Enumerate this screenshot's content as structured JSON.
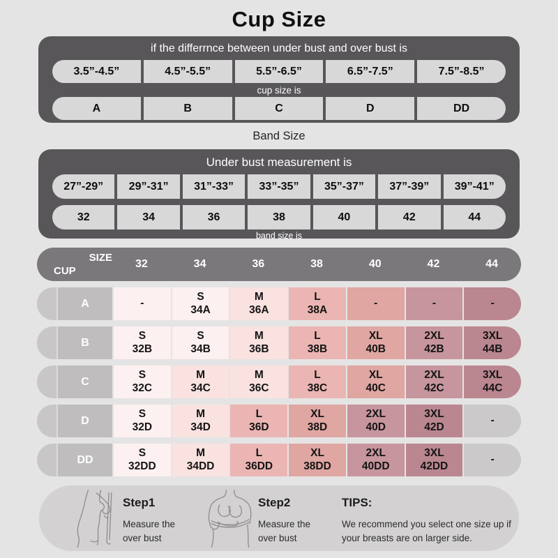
{
  "title": "Cup Size",
  "cup_table": {
    "header": "if the differrnce between under bust and over bust is",
    "ranges": [
      "3.5”-4.5”",
      "4.5”-5.5”",
      "5.5”-6.5”",
      "6.5”-7.5”",
      "7.5”-8.5”"
    ],
    "mid_label": "cup size is",
    "cups": [
      "A",
      "B",
      "C",
      "D",
      "DD"
    ]
  },
  "band_table": {
    "title": "Band Size",
    "header": "Under bust measurement is",
    "ranges": [
      "27”-29”",
      "29”-31”",
      "31”-33”",
      "33”-35”",
      "35”-37”",
      "37”-39”",
      "39”-41”"
    ],
    "bands": [
      "32",
      "34",
      "36",
      "38",
      "40",
      "42",
      "44"
    ],
    "footer": "band size is"
  },
  "matrix": {
    "corner_top": "SIZE",
    "corner_bottom": "CUP",
    "columns": [
      "32",
      "34",
      "36",
      "38",
      "40",
      "42",
      "44"
    ],
    "rows": [
      {
        "cup": "A",
        "cells": [
          {
            "line1": "-",
            "line2": "",
            "tone": "t0"
          },
          {
            "line1": "S",
            "line2": "34A",
            "tone": "t0"
          },
          {
            "line1": "M",
            "line2": "36A",
            "tone": "t1"
          },
          {
            "line1": "L",
            "line2": "38A",
            "tone": "t2"
          },
          {
            "line1": "-",
            "line2": "",
            "tone": "t3"
          },
          {
            "line1": "-",
            "line2": "",
            "tone": "t4"
          },
          {
            "line1": "-",
            "line2": "",
            "tone": "t5"
          }
        ]
      },
      {
        "cup": "B",
        "cells": [
          {
            "line1": "S",
            "line2": "32B",
            "tone": "t0"
          },
          {
            "line1": "S",
            "line2": "34B",
            "tone": "t0"
          },
          {
            "line1": "M",
            "line2": "36B",
            "tone": "t1"
          },
          {
            "line1": "L",
            "line2": "38B",
            "tone": "t2"
          },
          {
            "line1": "XL",
            "line2": "40B",
            "tone": "t3"
          },
          {
            "line1": "2XL",
            "line2": "42B",
            "tone": "t4"
          },
          {
            "line1": "3XL",
            "line2": "44B",
            "tone": "t5"
          }
        ]
      },
      {
        "cup": "C",
        "cells": [
          {
            "line1": "S",
            "line2": "32C",
            "tone": "t0"
          },
          {
            "line1": "M",
            "line2": "34C",
            "tone": "t1"
          },
          {
            "line1": "M",
            "line2": "36C",
            "tone": "t1"
          },
          {
            "line1": "L",
            "line2": "38C",
            "tone": "t2"
          },
          {
            "line1": "XL",
            "line2": "40C",
            "tone": "t3"
          },
          {
            "line1": "2XL",
            "line2": "42C",
            "tone": "t4"
          },
          {
            "line1": "3XL",
            "line2": "44C",
            "tone": "t5"
          }
        ]
      },
      {
        "cup": "D",
        "cells": [
          {
            "line1": "S",
            "line2": "32D",
            "tone": "t0"
          },
          {
            "line1": "M",
            "line2": "34D",
            "tone": "t1"
          },
          {
            "line1": "L",
            "line2": "36D",
            "tone": "t2"
          },
          {
            "line1": "XL",
            "line2": "38D",
            "tone": "t3"
          },
          {
            "line1": "2XL",
            "line2": "40D",
            "tone": "t4"
          },
          {
            "line1": "3XL",
            "line2": "42D",
            "tone": "t5"
          },
          {
            "line1": "-",
            "line2": "",
            "tone": "gray"
          }
        ]
      },
      {
        "cup": "DD",
        "cells": [
          {
            "line1": "S",
            "line2": "32DD",
            "tone": "t0"
          },
          {
            "line1": "M",
            "line2": "34DD",
            "tone": "t1"
          },
          {
            "line1": "L",
            "line2": "36DD",
            "tone": "t2"
          },
          {
            "line1": "XL",
            "line2": "38DD",
            "tone": "t3"
          },
          {
            "line1": "2XL",
            "line2": "40DD",
            "tone": "t4"
          },
          {
            "line1": "3XL",
            "line2": "42DD",
            "tone": "t5"
          },
          {
            "line1": "-",
            "line2": "",
            "tone": "gray"
          }
        ]
      }
    ]
  },
  "palette": {
    "t0": "#fdf0f0",
    "t1": "#f9e2e0",
    "t2": "#ebb5b3",
    "t3": "#dfa6a2",
    "t4": "#c7959d",
    "t5": "#ba8690",
    "gray": "#cbc9ca",
    "dark_box": "#59565a",
    "light_cell": "#d9d8d9",
    "matrix_header": "#7b787b",
    "row_label": "#bfbdbe",
    "row_cap": "#c8c6c7",
    "page_bg": "#e5e4e4",
    "tips_bg": "#d3d1d2"
  },
  "footer": {
    "step1_title": "Step1",
    "step1_desc": "Measure the over bust",
    "step2_title": "Step2",
    "step2_desc": "Measure the over bust",
    "tips_title": "TIPS:",
    "tips_desc": "We recommend you select one size up if your breasts are on larger side."
  },
  "icons": {
    "step1": "woman-side-view-measuring-tape-sketch",
    "step2": "woman-front-view-measuring-tape-sketch"
  },
  "chart_data": [
    {
      "type": "table",
      "title": "Cup Size",
      "note": "if the differrnce between under bust and over bust is → cup size is",
      "columns": [
        "difference",
        "cup size"
      ],
      "rows": [
        [
          "3.5”-4.5”",
          "A"
        ],
        [
          "4.5”-5.5”",
          "B"
        ],
        [
          "5.5”-6.5”",
          "C"
        ],
        [
          "6.5”-7.5”",
          "D"
        ],
        [
          "7.5”-8.5”",
          "DD"
        ]
      ]
    },
    {
      "type": "table",
      "title": "Band Size",
      "note": "Under bust measurement is → band size is",
      "columns": [
        "under bust",
        "band size"
      ],
      "rows": [
        [
          "27”-29”",
          "32"
        ],
        [
          "29”-31”",
          "34"
        ],
        [
          "31”-33”",
          "36"
        ],
        [
          "33”-35”",
          "38"
        ],
        [
          "35”-37”",
          "40"
        ],
        [
          "37”-39”",
          "42"
        ],
        [
          "39”-41”",
          "44"
        ]
      ]
    },
    {
      "type": "table",
      "title": "Size matrix (CUP × band SIZE)",
      "columns": [
        "CUP",
        "32",
        "34",
        "36",
        "38",
        "40",
        "42",
        "44"
      ],
      "rows": [
        [
          "A",
          "-",
          "S 34A",
          "M 36A",
          "L 38A",
          "-",
          "-",
          "-"
        ],
        [
          "B",
          "S 32B",
          "S 34B",
          "M 36B",
          "L 38B",
          "XL 40B",
          "2XL 42B",
          "3XL 44B"
        ],
        [
          "C",
          "S 32C",
          "M 34C",
          "M 36C",
          "L 38C",
          "XL 40C",
          "2XL 42C",
          "3XL 44C"
        ],
        [
          "D",
          "S 32D",
          "M 34D",
          "L 36D",
          "XL 38D",
          "2XL 40D",
          "3XL 42D",
          "-"
        ],
        [
          "DD",
          "S 32DD",
          "M 34DD",
          "L 36DD",
          "XL 38DD",
          "2XL 40DD",
          "3XL 42DD",
          "-"
        ]
      ]
    }
  ]
}
